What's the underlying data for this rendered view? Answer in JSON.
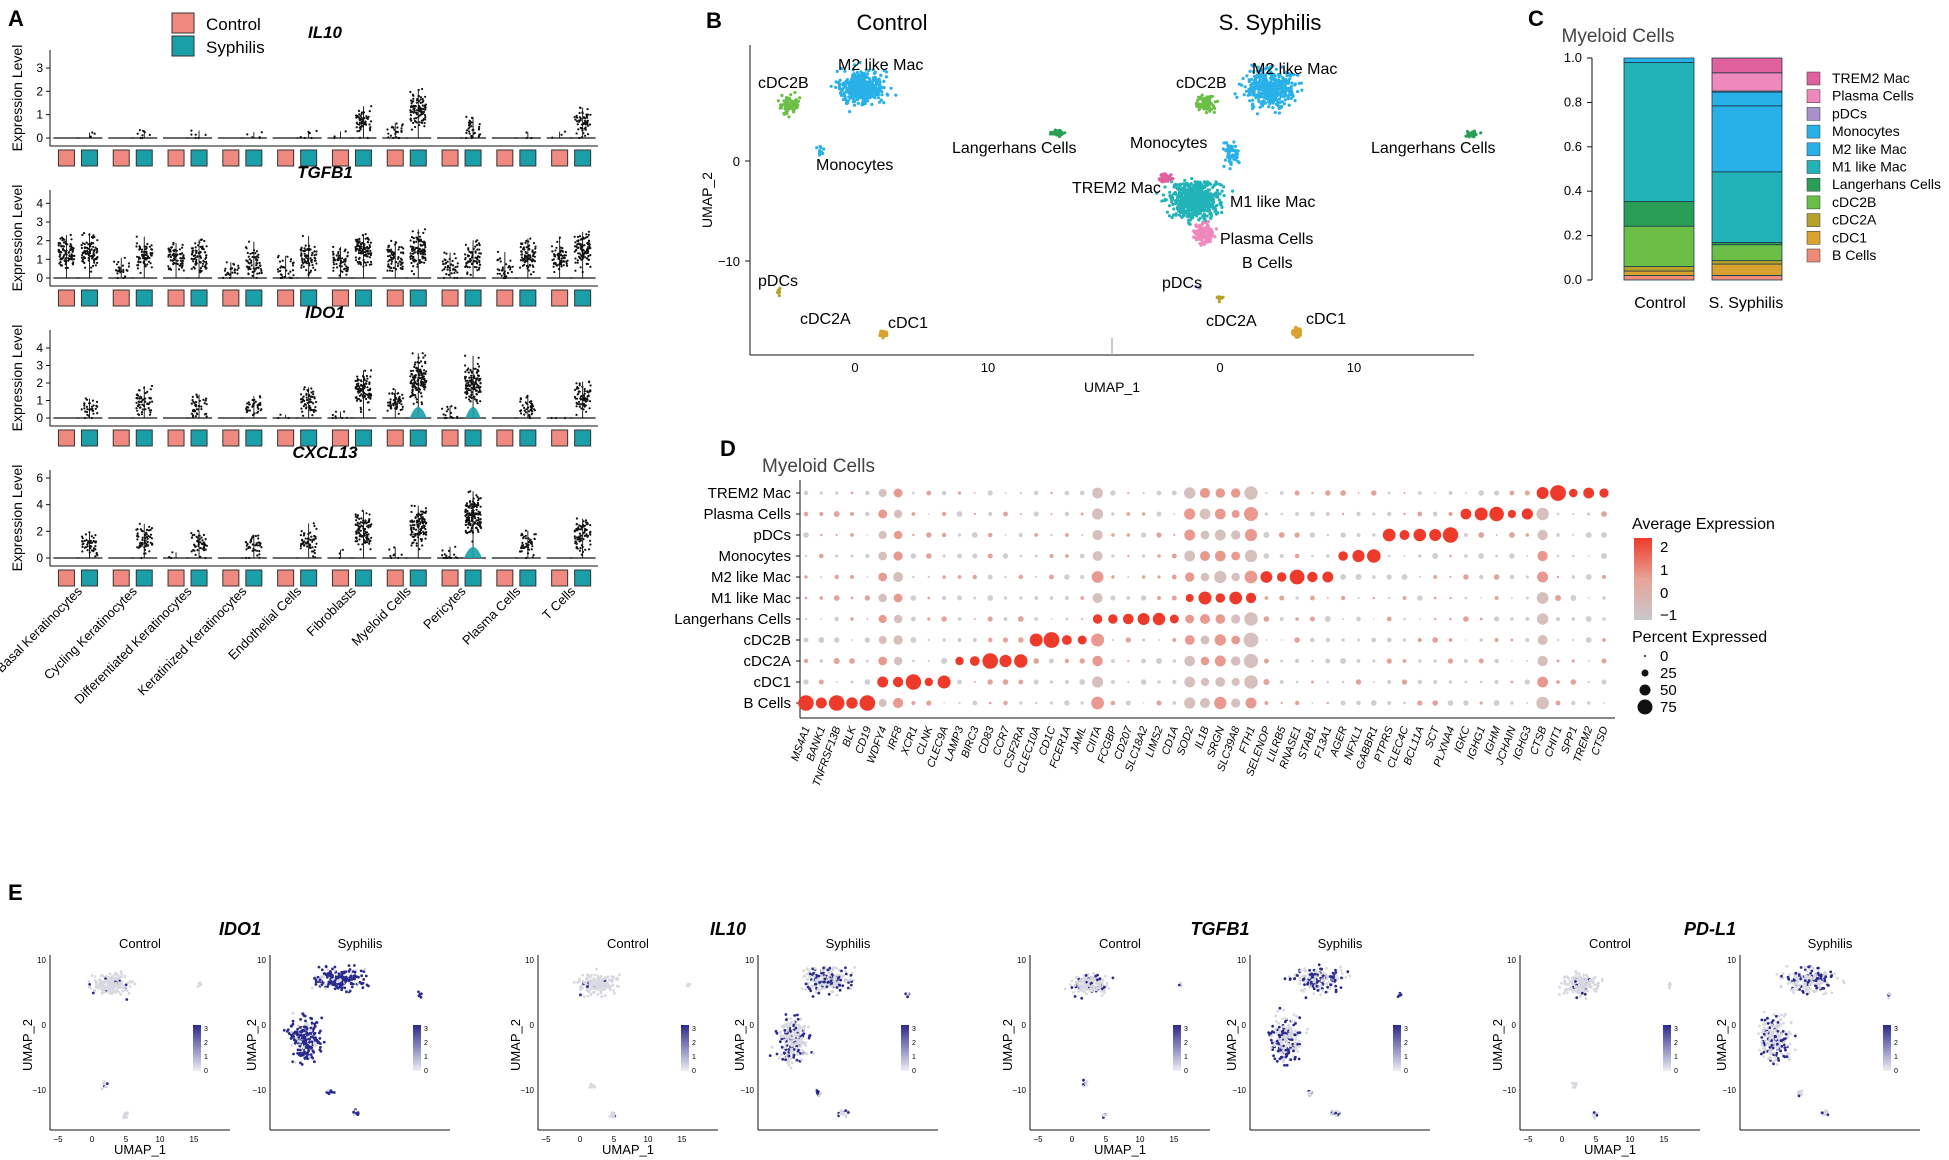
{
  "panels": {
    "A": "A",
    "B": "B",
    "C": "C",
    "D": "D",
    "E": "E"
  },
  "colors": {
    "control": "#f08a80",
    "syphilis": "#1a9fa8",
    "cell_colors": {
      "TREM2 Mac": "#e0609e",
      "Plasma Cells": "#ef88bd",
      "pDCs": "#a890c8",
      "Monocytes": "#28b1e8",
      "M2 like Mac": "#28b1e8",
      "M1 like Mac": "#22b3b8",
      "Langerhans Cells": "#2a9e57",
      "cDC2B": "#6cbf46",
      "cDC2A": "#b8a12a",
      "cDC1": "#d9a12e",
      "B Cells": "#ee8a78"
    },
    "dot_high": "#ee3a2a",
    "dot_low": "#c9c9cc",
    "feature_high": "#2a2a8c",
    "feature_low": "#d8d8e0"
  },
  "panel_a": {
    "legend": [
      "Control",
      "Syphilis"
    ],
    "ylabel": "Expression Level",
    "genes": [
      {
        "name": "IL10",
        "ticks": [
          "0",
          "1",
          "2",
          "3"
        ],
        "ymax": 3.6
      },
      {
        "name": "TGFB1",
        "ticks": [
          "0",
          "1",
          "2",
          "3",
          "4"
        ],
        "ymax": 4.5
      },
      {
        "name": "IDO1",
        "ticks": [
          "0",
          "1",
          "2",
          "3",
          "4"
        ],
        "ymax": 4.8
      },
      {
        "name": "CXCL13",
        "ticks": [
          "0",
          "2",
          "4",
          "6"
        ],
        "ymax": 6.3
      }
    ],
    "cell_types": [
      "Basal Keratinocytes",
      "Cycling Keratinocytes",
      "Differentiated Keratinocytes",
      "Keratinized Keratinocytes",
      "Endothelial Cells",
      "Fibroblasts",
      "Myeloid Cells",
      "Pericytes",
      "Plasma Cells",
      "T Cells"
    ]
  },
  "panel_b": {
    "titles": [
      "Control",
      "S. Syphilis"
    ],
    "xlabel": "UMAP_1",
    "ylabel": "UMAP_2",
    "yticks": [
      "0",
      "−10"
    ],
    "xticks": [
      "0",
      "10"
    ],
    "control_labels": [
      "cDC2B",
      "M2 like Mac",
      "Monocytes",
      "Langerhans Cells",
      "pDCs",
      "cDC2A",
      "cDC1"
    ],
    "syphilis_labels": [
      "cDC2B",
      "M2 like Mac",
      "Monocytes",
      "Langerhans Cells",
      "TREM2 Mac",
      "M1 like Mac",
      "Plasma Cells",
      "B Cells",
      "pDCs",
      "cDC2A",
      "cDC1"
    ]
  },
  "panel_c": {
    "title": "Myeloid Cells",
    "chart_data": {
      "type": "bar",
      "stacked": true,
      "categories": [
        "Control",
        "S. Syphilis"
      ],
      "yticks": [
        "0.0",
        "0.2",
        "0.4",
        "0.6",
        "0.8",
        "1.0"
      ],
      "ylim": [
        0,
        1
      ],
      "series": [
        {
          "name": "B Cells",
          "values": [
            0.02,
            0.02
          ]
        },
        {
          "name": "cDC1",
          "values": [
            0.02,
            0.05
          ]
        },
        {
          "name": "cDC2A",
          "values": [
            0.02,
            0.015
          ]
        },
        {
          "name": "cDC2B",
          "values": [
            0.18,
            0.07
          ]
        },
        {
          "name": "Langerhans Cells",
          "values": [
            0.11,
            0.01
          ]
        },
        {
          "name": "M1 like Mac",
          "values": [
            0.62,
            0.31
          ]
        },
        {
          "name": "M2 like Mac",
          "values": [
            0.02,
            0.29
          ]
        },
        {
          "name": "Monocytes",
          "values": [
            0.0,
            0.06
          ]
        },
        {
          "name": "pDCs",
          "values": [
            0.0,
            0.005
          ]
        },
        {
          "name": "Plasma Cells",
          "values": [
            0.0,
            0.08
          ]
        },
        {
          "name": "TREM2 Mac",
          "values": [
            0.0,
            0.065
          ]
        }
      ],
      "legend": [
        "TREM2 Mac",
        "Plasma Cells",
        "pDCs",
        "Monocytes",
        "M2 like Mac",
        "M1 like Mac",
        "Langerhans Cells",
        "cDC2B",
        "cDC2A",
        "cDC1",
        "B Cells"
      ]
    }
  },
  "panel_d": {
    "title": "Myeloid Cells",
    "rows": [
      "TREM2 Mac",
      "Plasma Cells",
      "pDCs",
      "Monocytes",
      "M2 like Mac",
      "M1 like Mac",
      "Langerhans Cells",
      "cDC2B",
      "cDC2A",
      "cDC1",
      "B Cells"
    ],
    "genes": [
      "MS4A1",
      "BANK1",
      "TNFRSF13B",
      "BLK",
      "CD19",
      "WDFY4",
      "IRF8",
      "XCR1",
      "CLNK",
      "CLEC9A",
      "LAMP3",
      "BIRC3",
      "CD83",
      "CCR7",
      "CSF2RA",
      "CLEC10A",
      "CD1C",
      "FCER1A",
      "JAML",
      "CIITA",
      "FCGBP",
      "CD207",
      "SLC18A2",
      "LIMS2",
      "CD1A",
      "SOD2",
      "IL1B",
      "SRGN",
      "SLC39A8",
      "FTH1",
      "SELENOP",
      "LILRB5",
      "RNASE1",
      "STAB1",
      "F13A1",
      "AGER",
      "NFXL1",
      "GABBR1",
      "PTPRS",
      "CLEC4C",
      "BCL11A",
      "SCT",
      "PLXNA4",
      "IGKC",
      "IGHG1",
      "IGHM",
      "JCHAIN",
      "IGHG3",
      "CTSB",
      "CHIT1",
      "SPP1",
      "TREM2",
      "CTSD"
    ],
    "legend_title_expr": "Average Expression",
    "expr_ticks": [
      "2",
      "1",
      "0",
      "−1"
    ],
    "legend_title_pct": "Percent Expressed",
    "pct_ticks": [
      "0",
      "25",
      "50",
      "75"
    ]
  },
  "panel_e": {
    "genes": [
      "IDO1",
      "IL10",
      "TGFB1",
      "PD-L1"
    ],
    "conditions": [
      "Control",
      "Syphilis"
    ],
    "xlabel": "UMAP_1",
    "ylabel": "UMAP_2",
    "scale_ticks": [
      "3",
      "2",
      "1",
      "0"
    ],
    "yticks": [
      "10",
      "0",
      "−10"
    ],
    "xticks": [
      "−5",
      "0",
      "5",
      "10",
      "15"
    ]
  }
}
